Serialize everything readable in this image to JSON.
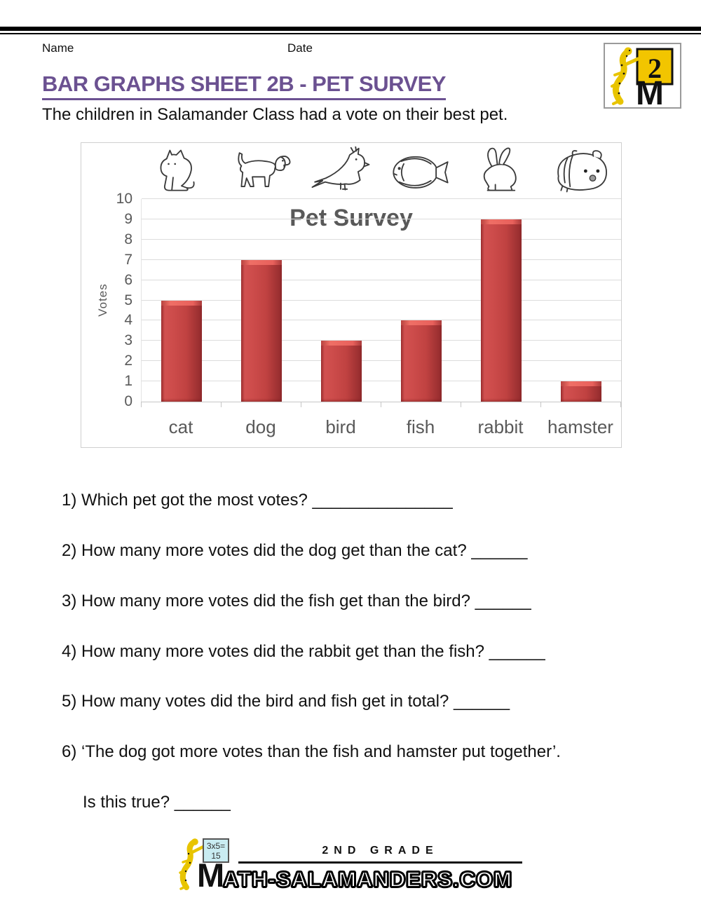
{
  "page": {
    "header": {
      "name_label": "Name",
      "date_label": "Date"
    },
    "title": "BAR GRAPHS SHEET 2B - PET SURVEY",
    "subtitle": "The children in Salamander Class had a vote on their best pet.",
    "corner_badge": {
      "number": "2",
      "letter": "M"
    },
    "questions": [
      "1) Which pet got the most votes? _______________",
      "2) How many more votes did the dog get than the cat? ______",
      "3) How many more votes did the fish get than the bird? ______",
      "4) How many more votes did the rabbit get than the fish? ______",
      "5) How many votes did the bird and fish get in total? ______",
      "6) ‘The dog got more votes than the fish and hamster put together’.",
      "Is this true? ______"
    ],
    "footer": {
      "grade": "2ND GRADE",
      "site_initial": "M",
      "site_rest": "ATH-SALAMANDERS.COM",
      "sign_line1": "3x5=",
      "sign_line2": "15"
    }
  },
  "chart_data": {
    "type": "bar",
    "title": "Pet Survey",
    "categories": [
      "cat",
      "dog",
      "bird",
      "fish",
      "rabbit",
      "hamster"
    ],
    "values": [
      5,
      7,
      3,
      4,
      9,
      1
    ],
    "xlabel": "",
    "ylabel": "Votes",
    "ylim": [
      0,
      10
    ],
    "yticks": [
      0,
      1,
      2,
      3,
      4,
      5,
      6,
      7,
      8,
      9,
      10
    ],
    "grid": true,
    "legend": false,
    "animal_icons": [
      "cat-icon",
      "dog-icon",
      "bird-icon",
      "fish-icon",
      "rabbit-icon",
      "hamster-icon"
    ]
  },
  "colors": {
    "accent_purple": "#6b5191",
    "chart_text_gray": "#595959",
    "bar_red": "#c04241",
    "bar_highlight_red": "#e8615c",
    "badge_yellow": "#f2c500",
    "sign_cyan": "#c9ecf2"
  }
}
